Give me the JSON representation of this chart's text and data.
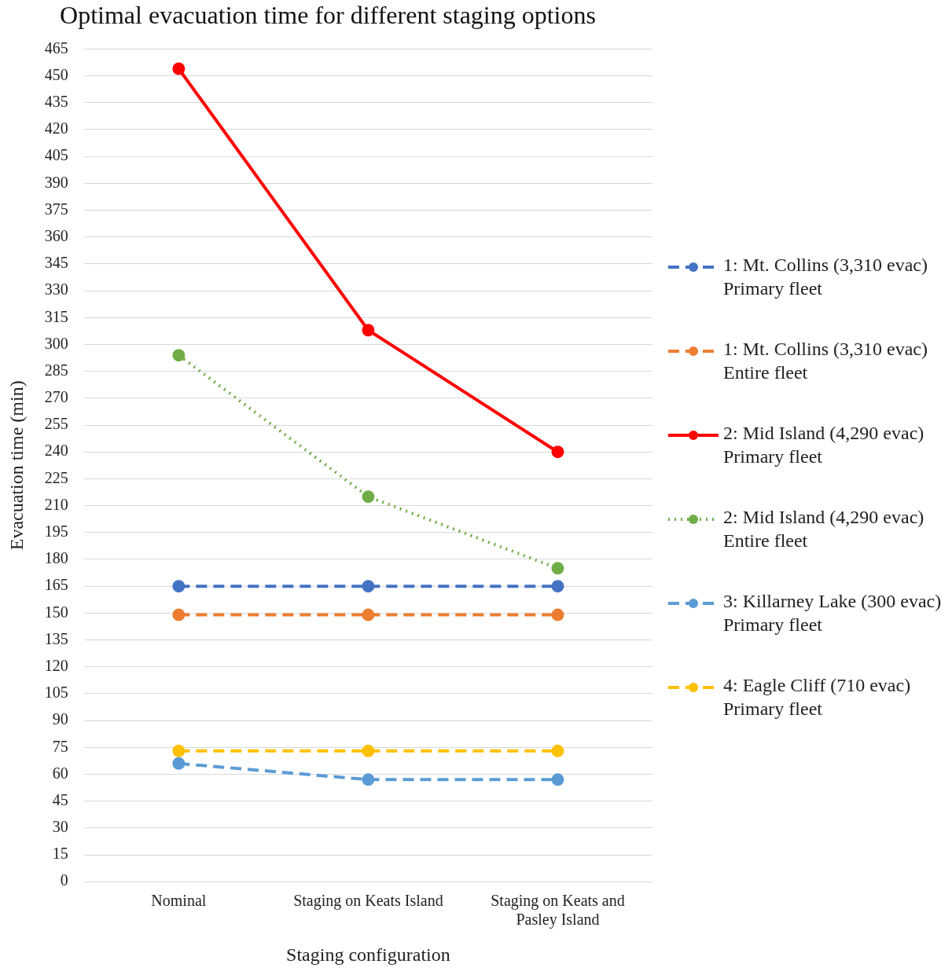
{
  "chart_data": {
    "type": "line",
    "title": "Optimal evacuation time for different staging options",
    "xlabel": "Staging configuration",
    "ylabel": "Evacuation time (min)",
    "categories": [
      "Nominal",
      "Staging on Keats Island",
      "Staging on Keats and Pasley Island"
    ],
    "series": [
      {
        "name": "1: Mt. Collins (3,310 evac) Primary fleet",
        "color": "#4472c4",
        "line_style": "dashed",
        "values": [
          165,
          165,
          165
        ]
      },
      {
        "name": "1: Mt. Collins (3,310 evac) Entire fleet",
        "color": "#ed7d31",
        "line_style": "dashed",
        "values": [
          149,
          149,
          149
        ]
      },
      {
        "name": "2: Mid Island (4,290 evac) Primary fleet",
        "color": "#ff0000",
        "line_style": "solid",
        "values": [
          454,
          308,
          240
        ]
      },
      {
        "name": "2: Mid Island (4,290 evac) Entire fleet",
        "color": "#70ad47",
        "line_style": "dotted",
        "values": [
          294,
          215,
          175
        ]
      },
      {
        "name": "3: Killarney Lake (300 evac) Primary fleet",
        "color": "#5b9bd5",
        "line_style": "dashed",
        "values": [
          66,
          57,
          57
        ]
      },
      {
        "name": "4: Eagle Cliff (710 evac) Primary fleet",
        "color": "#ffc000",
        "line_style": "dashed",
        "values": [
          73,
          73,
          73
        ]
      }
    ],
    "ylim": [
      0,
      465
    ],
    "yticks": [
      0,
      15,
      30,
      45,
      60,
      75,
      90,
      105,
      120,
      135,
      150,
      165,
      180,
      195,
      210,
      225,
      240,
      255,
      270,
      285,
      300,
      315,
      330,
      345,
      360,
      375,
      390,
      405,
      420,
      435,
      450,
      465
    ],
    "grid": "y",
    "legend": "right",
    "marker": "circle"
  }
}
